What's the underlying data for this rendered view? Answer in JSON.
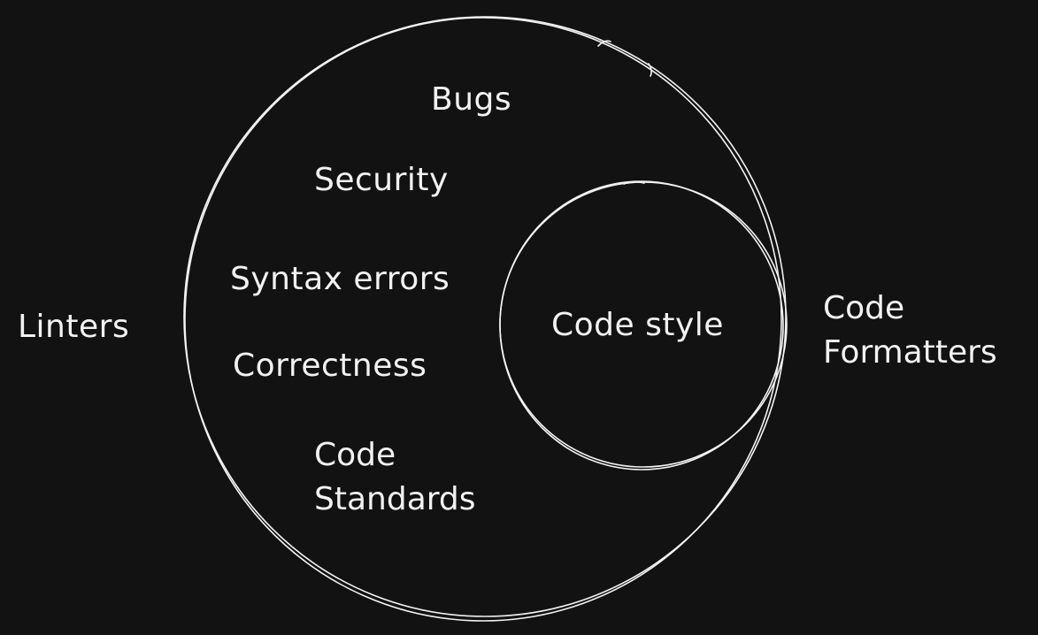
{
  "diagram": {
    "outer_label": "Linters",
    "inner_label_lines": [
      "Code",
      "Formatters"
    ],
    "inner_circle_text": "Code style",
    "outer_items": {
      "bugs": "Bugs",
      "security": "Security",
      "syntax_errors": "Syntax errors",
      "correctness": "Correctness",
      "code_standards_lines": [
        "Code",
        "Standards"
      ]
    }
  },
  "colors": {
    "background": "#121212",
    "stroke": "#f2f2f2",
    "text": "#f2f2f2"
  }
}
